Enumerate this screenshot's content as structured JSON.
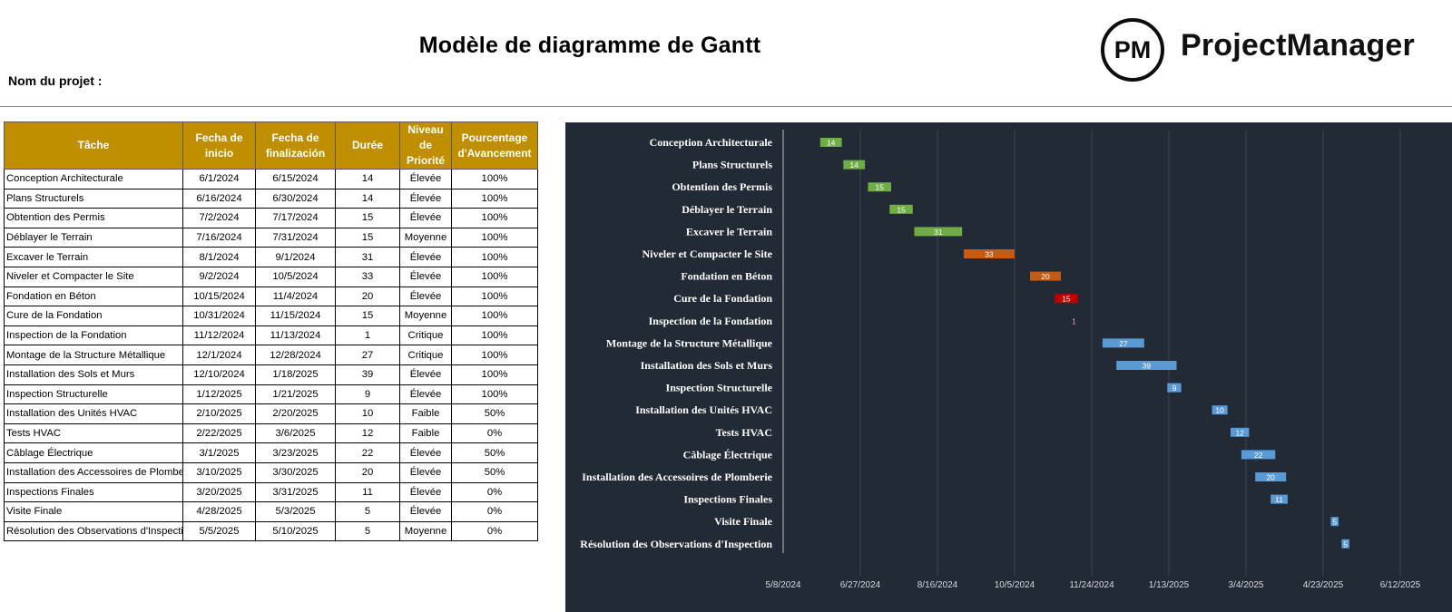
{
  "title": "Modèle de diagramme de Gantt",
  "project_label": "Nom du projet :",
  "logo": {
    "mark": "PM",
    "name": "ProjectManager"
  },
  "table": {
    "headers": [
      "Tâche",
      "Fecha de inicio",
      "Fecha de finalización",
      "Durée",
      "Niveau de Priorité",
      "Pourcentage d'Avancement"
    ],
    "rows": [
      [
        "Conception Architecturale",
        "6/1/2024",
        "6/15/2024",
        "14",
        "Élevée",
        "100%"
      ],
      [
        "Plans Structurels",
        "6/16/2024",
        "6/30/2024",
        "14",
        "Élevée",
        "100%"
      ],
      [
        "Obtention des Permis",
        "7/2/2024",
        "7/17/2024",
        "15",
        "Élevée",
        "100%"
      ],
      [
        "Déblayer le Terrain",
        "7/16/2024",
        "7/31/2024",
        "15",
        "Moyenne",
        "100%"
      ],
      [
        "Excaver le Terrain",
        "8/1/2024",
        "9/1/2024",
        "31",
        "Élevée",
        "100%"
      ],
      [
        "Niveler et Compacter le Site",
        "9/2/2024",
        "10/5/2024",
        "33",
        "Élevée",
        "100%"
      ],
      [
        "Fondation en Béton",
        "10/15/2024",
        "11/4/2024",
        "20",
        "Élevée",
        "100%"
      ],
      [
        "Cure de la Fondation",
        "10/31/2024",
        "11/15/2024",
        "15",
        "Moyenne",
        "100%"
      ],
      [
        "Inspection de la Fondation",
        "11/12/2024",
        "11/13/2024",
        "1",
        "Critique",
        "100%"
      ],
      [
        "Montage de la Structure Métallique",
        "12/1/2024",
        "12/28/2024",
        "27",
        "Critique",
        "100%"
      ],
      [
        "Installation des Sols et Murs",
        "12/10/2024",
        "1/18/2025",
        "39",
        "Élevée",
        "100%"
      ],
      [
        "Inspection Structurelle",
        "1/12/2025",
        "1/21/2025",
        "9",
        "Élevée",
        "100%"
      ],
      [
        "Installation des Unités HVAC",
        "2/10/2025",
        "2/20/2025",
        "10",
        "Faible",
        "50%"
      ],
      [
        "Tests HVAC",
        "2/22/2025",
        "3/6/2025",
        "12",
        "Faible",
        "0%"
      ],
      [
        "Câblage Électrique",
        "3/1/2025",
        "3/23/2025",
        "22",
        "Élevée",
        "50%"
      ],
      [
        "Installation des Accessoires de Plomberie",
        "3/10/2025",
        "3/30/2025",
        "20",
        "Élevée",
        "50%"
      ],
      [
        "Inspections Finales",
        "3/20/2025",
        "3/31/2025",
        "11",
        "Élevée",
        "0%"
      ],
      [
        "Visite Finale",
        "4/28/2025",
        "5/3/2025",
        "5",
        "Élevée",
        "0%"
      ],
      [
        "Résolution des Observations d'Inspection",
        "5/5/2025",
        "5/10/2025",
        "5",
        "Moyenne",
        "0%"
      ]
    ]
  },
  "chart_data": {
    "type": "bar",
    "orientation": "horizontal-gantt",
    "xlim": [
      "2024-05-08",
      "2025-06-12"
    ],
    "x_ticks": [
      "5/8/2024",
      "6/27/2024",
      "8/16/2024",
      "10/5/2024",
      "11/24/2024",
      "1/13/2025",
      "3/4/2025",
      "4/23/2025",
      "6/12/2025"
    ],
    "grid": true,
    "colors": {
      "background": "#222a35",
      "green": "#70ad47",
      "orange": "#c55a11",
      "red": "#c00000",
      "blue": "#5b9bd5",
      "label": "#ffffff",
      "tick": "#d9d9d9",
      "grid": "#3b4452"
    },
    "tasks": [
      {
        "name": "Conception Architecturale",
        "start": "2024-06-01",
        "duration": 14,
        "color": "#70ad47"
      },
      {
        "name": "Plans Structurels",
        "start": "2024-06-16",
        "duration": 14,
        "color": "#70ad47"
      },
      {
        "name": "Obtention des Permis",
        "start": "2024-07-02",
        "duration": 15,
        "color": "#70ad47"
      },
      {
        "name": "Déblayer le Terrain",
        "start": "2024-07-16",
        "duration": 15,
        "color": "#70ad47"
      },
      {
        "name": "Excaver le Terrain",
        "start": "2024-08-01",
        "duration": 31,
        "color": "#70ad47"
      },
      {
        "name": "Niveler et Compacter le Site",
        "start": "2024-09-02",
        "duration": 33,
        "color": "#c55a11"
      },
      {
        "name": "Fondation en Béton",
        "start": "2024-10-15",
        "duration": 20,
        "color": "#c55a11"
      },
      {
        "name": "Cure de la Fondation",
        "start": "2024-10-31",
        "duration": 15,
        "color": "#c00000"
      },
      {
        "name": "Inspection de la Fondation",
        "start": "2024-11-12",
        "duration": 1,
        "color": "#c00000"
      },
      {
        "name": "Montage de la Structure Métallique",
        "start": "2024-12-01",
        "duration": 27,
        "color": "#5b9bd5"
      },
      {
        "name": "Installation des Sols et Murs",
        "start": "2024-12-10",
        "duration": 39,
        "color": "#5b9bd5"
      },
      {
        "name": "Inspection Structurelle",
        "start": "2025-01-12",
        "duration": 9,
        "color": "#5b9bd5"
      },
      {
        "name": "Installation des Unités HVAC",
        "start": "2025-02-10",
        "duration": 10,
        "color": "#5b9bd5"
      },
      {
        "name": "Tests HVAC",
        "start": "2025-02-22",
        "duration": 12,
        "color": "#5b9bd5"
      },
      {
        "name": "Câblage Électrique",
        "start": "2025-03-01",
        "duration": 22,
        "color": "#5b9bd5"
      },
      {
        "name": "Installation des Accessoires de Plomberie",
        "start": "2025-03-10",
        "duration": 20,
        "color": "#5b9bd5"
      },
      {
        "name": "Inspections Finales",
        "start": "2025-03-20",
        "duration": 11,
        "color": "#5b9bd5"
      },
      {
        "name": "Visite Finale",
        "start": "2025-04-28",
        "duration": 5,
        "color": "#5b9bd5"
      },
      {
        "name": "Résolution des Observations d'Inspection",
        "start": "2025-05-05",
        "duration": 5,
        "color": "#5b9bd5"
      }
    ]
  }
}
